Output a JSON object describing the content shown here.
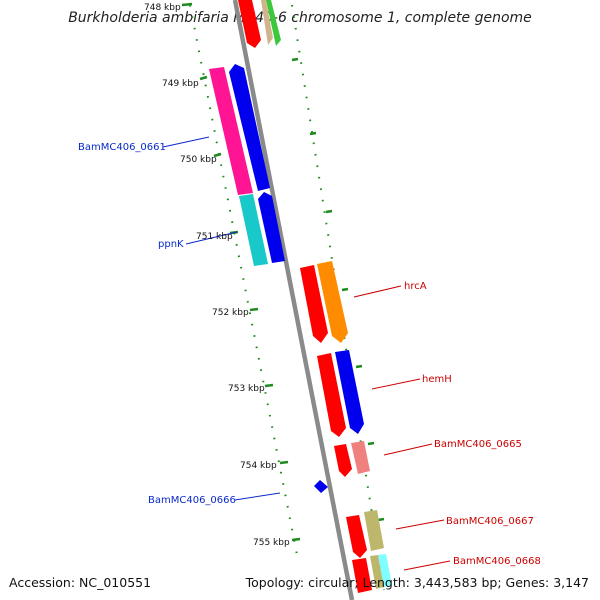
{
  "title": "Burkholderia ambifaria MC40-6 chromosome 1, complete genome",
  "footer": {
    "accession": "Accession: NC_010551",
    "summary": "Topology: circular; Length: 3,443,583 bp; Genes: 3,147"
  },
  "ticks": [
    "748 kbp",
    "749 kbp",
    "750 kbp",
    "751 kbp",
    "752 kbp",
    "753 kbp",
    "754 kbp",
    "755 kbp"
  ],
  "labels": [
    {
      "text": "BamMC406_0661",
      "strand": "minus"
    },
    {
      "text": "ppnK",
      "strand": "minus"
    },
    {
      "text": "hrcA",
      "strand": "plus"
    },
    {
      "text": "hemH",
      "strand": "plus"
    },
    {
      "text": "BamMC406_0665",
      "strand": "plus"
    },
    {
      "text": "BamMC406_0666",
      "strand": "minus"
    },
    {
      "text": "BamMC406_0667",
      "strand": "plus"
    },
    {
      "text": "BamMC406_0668",
      "strand": "plus"
    }
  ],
  "colors": {
    "backbone": "#8a8a8a",
    "tick_marks": "#1f8a1f",
    "minus_label": "#0a2ac8",
    "plus_label": "#cc0000",
    "cds": "#ff0000",
    "gene_pink": "#ff1493",
    "gene_blue": "#0000ee",
    "gene_cyan": "#19c8c8",
    "gene_orange": "#ff8c00",
    "gene_salmon": "#f08080",
    "gene_khaki": "#bdb76b",
    "gene_green": "#3cc83c",
    "gene_tan": "#d2b48c",
    "gene_lightcyan": "#7fffff"
  }
}
